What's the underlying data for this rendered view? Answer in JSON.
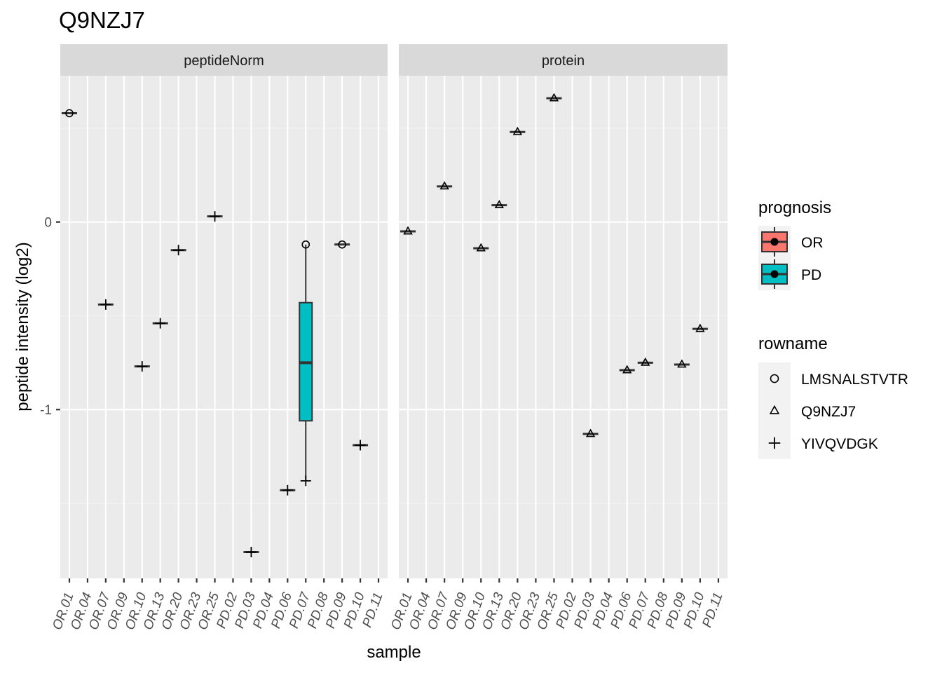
{
  "chart_data": {
    "type": "boxplot",
    "title": "Q9NZJ7",
    "xlabel": "sample",
    "ylabel": "peptide intensity (log2)",
    "ylim": [
      -1.9,
      0.78
    ],
    "y_ticks": [
      0,
      -1
    ],
    "y_tick_labels": [
      "0",
      "-1"
    ],
    "grid": true,
    "legend_position": "right",
    "samples": [
      "OR.01",
      "OR.04",
      "OR.07",
      "OR.09",
      "OR.10",
      "OR.13",
      "OR.20",
      "OR.23",
      "OR.25",
      "PD.02",
      "PD.03",
      "PD.04",
      "PD.06",
      "PD.07",
      "PD.08",
      "PD.09",
      "PD.10",
      "PD.11"
    ],
    "legends": {
      "prognosis": {
        "title": "prognosis",
        "items": [
          {
            "label": "OR",
            "color": "#F8766D"
          },
          {
            "label": "PD",
            "color": "#00BFC4"
          }
        ]
      },
      "rowname": {
        "title": "rowname",
        "items": [
          {
            "label": "LMSNALSTVTR",
            "shape": "circle"
          },
          {
            "label": "Q9NZJ7",
            "shape": "triangle"
          },
          {
            "label": "YIVQVDGK",
            "shape": "plus"
          }
        ]
      }
    },
    "panels": [
      {
        "strip": "peptideNorm",
        "points": [
          {
            "sample": "OR.01",
            "y": 0.58,
            "shape": "circle"
          },
          {
            "sample": "OR.07",
            "y": -0.44,
            "shape": "plus"
          },
          {
            "sample": "OR.10",
            "y": -0.77,
            "shape": "plus"
          },
          {
            "sample": "OR.13",
            "y": -0.54,
            "shape": "plus"
          },
          {
            "sample": "OR.20",
            "y": -0.15,
            "shape": "plus"
          },
          {
            "sample": "OR.25",
            "y": 0.03,
            "shape": "plus"
          },
          {
            "sample": "PD.03",
            "y": -1.76,
            "shape": "plus"
          },
          {
            "sample": "PD.06",
            "y": -1.43,
            "shape": "plus"
          },
          {
            "sample": "PD.07",
            "y": -0.12,
            "shape": "circle"
          },
          {
            "sample": "PD.07",
            "y": -1.38,
            "shape": "plus"
          },
          {
            "sample": "PD.09",
            "y": -0.12,
            "shape": "circle"
          },
          {
            "sample": "PD.10",
            "y": -1.19,
            "shape": "plus"
          }
        ],
        "boxes": [
          {
            "sample": "PD.07",
            "group": "PD",
            "min": -1.38,
            "q1": -1.06,
            "median": -0.75,
            "q3": -0.43,
            "max": -0.12
          }
        ]
      },
      {
        "strip": "protein",
        "points": [
          {
            "sample": "OR.01",
            "y": -0.05,
            "shape": "triangle"
          },
          {
            "sample": "OR.07",
            "y": 0.19,
            "shape": "triangle"
          },
          {
            "sample": "OR.10",
            "y": -0.14,
            "shape": "triangle"
          },
          {
            "sample": "OR.13",
            "y": 0.09,
            "shape": "triangle"
          },
          {
            "sample": "OR.20",
            "y": 0.48,
            "shape": "triangle"
          },
          {
            "sample": "OR.25",
            "y": 0.66,
            "shape": "triangle"
          },
          {
            "sample": "PD.03",
            "y": -1.13,
            "shape": "triangle"
          },
          {
            "sample": "PD.06",
            "y": -0.79,
            "shape": "triangle"
          },
          {
            "sample": "PD.07",
            "y": -0.75,
            "shape": "triangle"
          },
          {
            "sample": "PD.09",
            "y": -0.76,
            "shape": "triangle"
          },
          {
            "sample": "PD.10",
            "y": -0.57,
            "shape": "triangle"
          }
        ],
        "boxes": []
      }
    ]
  }
}
